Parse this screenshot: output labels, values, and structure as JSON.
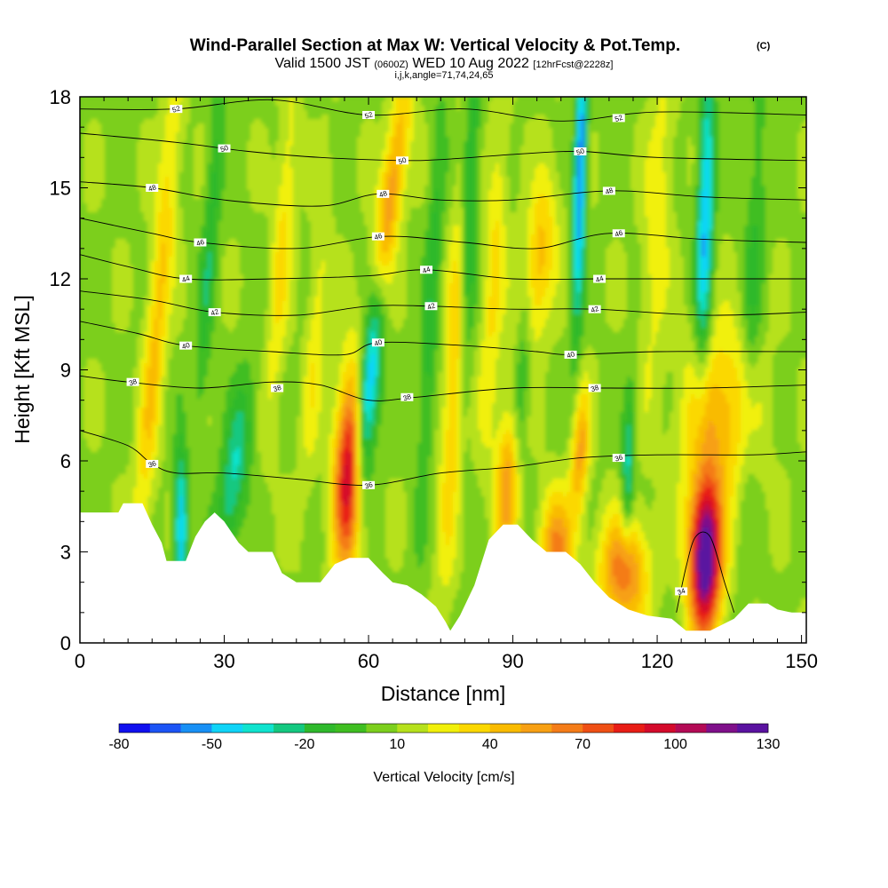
{
  "chart_data": {
    "type": "heatmap",
    "title": "Wind-Parallel Section at Max W: Vertical Velocity & Pot.Temp.",
    "title_mark": "(C)",
    "subtitle": {
      "main_a": "Valid 1500 JST",
      "utc": "(0600Z)",
      "main_b": "WED 10 Aug 2022",
      "run": "[12hrFcst@2228z]"
    },
    "info_line": "i,j,k,angle=71,74,24,65",
    "xlabel": "Distance [nm]",
    "ylabel": "Height [Kft MSL]",
    "xlim": [
      0,
      151
    ],
    "ylim": [
      0,
      18
    ],
    "x_ticks": [
      "0",
      "30",
      "60",
      "90",
      "120",
      "150"
    ],
    "y_ticks": [
      "0",
      "3",
      "6",
      "9",
      "12",
      "15",
      "18"
    ],
    "colorbar": {
      "label": "Vertical Velocity [cm/s]",
      "tick_labels": [
        "-80",
        "-50",
        "-20",
        "10",
        "40",
        "70",
        "100",
        "130"
      ],
      "min": -80,
      "step": 10,
      "colors": [
        "#1010ef",
        "#1c54f5",
        "#1890f5",
        "#10d4f7",
        "#10e3ce",
        "#14c880",
        "#2fb92c",
        "#3fbe21",
        "#7ccf1d",
        "#b6e11c",
        "#f1f00a",
        "#fbd800",
        "#f9bb00",
        "#f7a014",
        "#f47c18",
        "#ef4f15",
        "#e81d16",
        "#d40a2b",
        "#b30a55",
        "#7f108a",
        "#5a12a0"
      ]
    },
    "terrain": [
      [
        0,
        4.3
      ],
      [
        8,
        4.3
      ],
      [
        9,
        4.6
      ],
      [
        13,
        4.6
      ],
      [
        15,
        3.9
      ],
      [
        17,
        3.3
      ],
      [
        18,
        2.7
      ],
      [
        22,
        2.7
      ],
      [
        24,
        3.5
      ],
      [
        26,
        4.0
      ],
      [
        28,
        4.3
      ],
      [
        30,
        4.0
      ],
      [
        33,
        3.3
      ],
      [
        35,
        3.0
      ],
      [
        40,
        3.0
      ],
      [
        42,
        2.3
      ],
      [
        45,
        2.0
      ],
      [
        50,
        2.0
      ],
      [
        53,
        2.6
      ],
      [
        56,
        2.8
      ],
      [
        60,
        2.8
      ],
      [
        63,
        2.3
      ],
      [
        65,
        2.0
      ],
      [
        68,
        1.9
      ],
      [
        71,
        1.6
      ],
      [
        74,
        1.2
      ],
      [
        76,
        0.7
      ],
      [
        77,
        0.4
      ],
      [
        79,
        0.9
      ],
      [
        82,
        1.9
      ],
      [
        85,
        3.4
      ],
      [
        88,
        3.9
      ],
      [
        91,
        3.9
      ],
      [
        94,
        3.4
      ],
      [
        97,
        3.0
      ],
      [
        101,
        3.0
      ],
      [
        104,
        2.6
      ],
      [
        107,
        2.0
      ],
      [
        110,
        1.5
      ],
      [
        114,
        1.1
      ],
      [
        118,
        0.9
      ],
      [
        123,
        0.8
      ],
      [
        126,
        0.4
      ],
      [
        131,
        0.4
      ],
      [
        136,
        0.8
      ],
      [
        139,
        1.3
      ],
      [
        143,
        1.3
      ],
      [
        145,
        1.1
      ],
      [
        148,
        1.0
      ],
      [
        151,
        1.0
      ]
    ],
    "updrafts": [
      {
        "x": 56,
        "y": 5.5,
        "wx": 2.2,
        "wy": 2.3,
        "tilt": 0.15,
        "peak": 95
      },
      {
        "x": 130,
        "y": 2.8,
        "wx": 2.4,
        "wy": 1.8,
        "tilt": 0.05,
        "peak": 130
      },
      {
        "x": 113,
        "y": 2.3,
        "wx": 3.5,
        "wy": 1.3,
        "tilt": 0.0,
        "peak": 60
      },
      {
        "x": 99,
        "y": 2.9,
        "wx": 2.4,
        "wy": 1.4,
        "tilt": 0.0,
        "peak": 55
      },
      {
        "x": 89,
        "y": 5.2,
        "wx": 1.8,
        "wy": 1.8,
        "tilt": 0.2,
        "peak": 50
      },
      {
        "x": 64,
        "y": 14.2,
        "wx": 1.8,
        "wy": 3.2,
        "tilt": 0.9,
        "peak": 55
      },
      {
        "x": 78,
        "y": 9.0,
        "wx": 1.6,
        "wy": 5.0,
        "tilt": 0.3,
        "peak": 35
      },
      {
        "x": 95,
        "y": 12.5,
        "wx": 2.5,
        "wy": 2.0,
        "tilt": 0.6,
        "peak": 40
      },
      {
        "x": 16,
        "y": 10.5,
        "wx": 1.6,
        "wy": 6.0,
        "tilt": 0.5,
        "peak": 35
      },
      {
        "x": 104,
        "y": 6.2,
        "wx": 1.3,
        "wy": 1.5,
        "tilt": 0.3,
        "peak": 45
      },
      {
        "x": 133,
        "y": 7.5,
        "wx": 5.5,
        "wy": 2.0,
        "tilt": 0.2,
        "peak": 40
      },
      {
        "x": 42,
        "y": 13.0,
        "wx": 1.5,
        "wy": 4.0,
        "tilt": 0.4,
        "peak": 25
      },
      {
        "x": 49,
        "y": 10.0,
        "wx": 1.4,
        "wy": 3.5,
        "tilt": 0.4,
        "peak": 20
      },
      {
        "x": 86,
        "y": 12.0,
        "wx": 1.5,
        "wy": 4.0,
        "tilt": 0.3,
        "peak": 25
      },
      {
        "x": 120,
        "y": 14.0,
        "wx": 2.0,
        "wy": 4.0,
        "tilt": 0.3,
        "peak": 20
      }
    ],
    "downdrafts": [
      {
        "x": 60,
        "y": 8.5,
        "wx": 1.6,
        "wy": 2.8,
        "tilt": 0.5,
        "peak": -75
      },
      {
        "x": 130,
        "y": 14.0,
        "wx": 1.2,
        "wy": 3.5,
        "tilt": 0.15,
        "peak": -60
      },
      {
        "x": 104,
        "y": 15.5,
        "wx": 0.9,
        "wy": 3.5,
        "tilt": 0.15,
        "peak": -70
      },
      {
        "x": 21,
        "y": 3.8,
        "wx": 0.9,
        "wy": 1.8,
        "tilt": 0.0,
        "peak": -60
      },
      {
        "x": 32,
        "y": 5.5,
        "wx": 2.0,
        "wy": 2.2,
        "tilt": 0.8,
        "peak": -40
      },
      {
        "x": 81,
        "y": 14.5,
        "wx": 1.2,
        "wy": 4.0,
        "tilt": 0.2,
        "peak": -40
      },
      {
        "x": 114,
        "y": 5.8,
        "wx": 0.9,
        "wy": 1.8,
        "tilt": 0.2,
        "peak": -40
      },
      {
        "x": 27,
        "y": 13.0,
        "wx": 1.2,
        "wy": 4.5,
        "tilt": 0.4,
        "peak": -25
      },
      {
        "x": 73,
        "y": 11.0,
        "wx": 1.2,
        "wy": 5.0,
        "tilt": 0.3,
        "peak": -25
      },
      {
        "x": 92,
        "y": 9.0,
        "wx": 1.2,
        "wy": 3.0,
        "tilt": 0.3,
        "peak": -25
      },
      {
        "x": 140,
        "y": 12.0,
        "wx": 1.5,
        "wy": 5.0,
        "tilt": 0.2,
        "peak": -20
      }
    ],
    "contours": [
      {
        "label": "52",
        "points": [
          [
            0,
            17.6
          ],
          [
            20,
            17.6
          ],
          [
            40,
            17.9
          ],
          [
            60,
            17.4
          ],
          [
            80,
            17.6
          ],
          [
            100,
            17.2
          ],
          [
            120,
            17.5
          ],
          [
            151,
            17.4
          ]
        ],
        "label_at": [
          [
            20,
            17.6
          ],
          [
            60,
            17.4
          ],
          [
            112,
            17.3
          ]
        ]
      },
      {
        "label": "50",
        "points": [
          [
            0,
            16.8
          ],
          [
            20,
            16.5
          ],
          [
            35,
            16.2
          ],
          [
            50,
            16.0
          ],
          [
            70,
            15.9
          ],
          [
            90,
            16.1
          ],
          [
            104,
            16.2
          ],
          [
            120,
            16.0
          ],
          [
            151,
            15.9
          ]
        ],
        "label_at": [
          [
            30,
            16.3
          ],
          [
            67,
            15.9
          ],
          [
            104,
            16.2
          ]
        ]
      },
      {
        "label": "48",
        "points": [
          [
            0,
            15.2
          ],
          [
            15,
            15.0
          ],
          [
            30,
            14.6
          ],
          [
            50,
            14.4
          ],
          [
            62,
            14.8
          ],
          [
            75,
            14.6
          ],
          [
            90,
            14.6
          ],
          [
            110,
            14.9
          ],
          [
            130,
            14.7
          ],
          [
            151,
            14.6
          ]
        ],
        "label_at": [
          [
            15,
            15.0
          ],
          [
            63,
            14.8
          ],
          [
            110,
            14.9
          ]
        ]
      },
      {
        "label": "46",
        "points": [
          [
            0,
            14.0
          ],
          [
            15,
            13.5
          ],
          [
            25,
            13.2
          ],
          [
            45,
            13.0
          ],
          [
            63,
            13.4
          ],
          [
            80,
            13.2
          ],
          [
            95,
            13.0
          ],
          [
            110,
            13.5
          ],
          [
            130,
            13.3
          ],
          [
            151,
            13.2
          ]
        ],
        "label_at": [
          [
            25,
            13.2
          ],
          [
            62,
            13.4
          ],
          [
            112,
            13.5
          ]
        ]
      },
      {
        "label": "44",
        "points": [
          [
            0,
            12.8
          ],
          [
            10,
            12.4
          ],
          [
            22,
            12.0
          ],
          [
            40,
            12.0
          ],
          [
            60,
            12.1
          ],
          [
            72,
            12.3
          ],
          [
            90,
            12.0
          ],
          [
            108,
            12.0
          ],
          [
            130,
            12.0
          ],
          [
            151,
            12.0
          ]
        ],
        "label_at": [
          [
            22,
            12.0
          ],
          [
            72,
            12.3
          ],
          [
            108,
            12.0
          ]
        ]
      },
      {
        "label": "42",
        "points": [
          [
            0,
            11.6
          ],
          [
            15,
            11.3
          ],
          [
            28,
            10.9
          ],
          [
            45,
            10.8
          ],
          [
            60,
            11.1
          ],
          [
            73,
            11.1
          ],
          [
            90,
            11.0
          ],
          [
            107,
            11.0
          ],
          [
            130,
            10.8
          ],
          [
            151,
            10.9
          ]
        ],
        "label_at": [
          [
            28,
            10.9
          ],
          [
            73,
            11.1
          ],
          [
            107,
            11.0
          ]
        ]
      },
      {
        "label": "40",
        "points": [
          [
            0,
            10.6
          ],
          [
            12,
            10.2
          ],
          [
            22,
            9.8
          ],
          [
            40,
            9.6
          ],
          [
            55,
            9.5
          ],
          [
            62,
            9.9
          ],
          [
            80,
            9.8
          ],
          [
            95,
            9.6
          ],
          [
            102,
            9.5
          ],
          [
            120,
            9.6
          ],
          [
            151,
            9.6
          ]
        ],
        "label_at": [
          [
            22,
            9.8
          ],
          [
            62,
            9.9
          ],
          [
            102,
            9.5
          ]
        ]
      },
      {
        "label": "38",
        "points": [
          [
            0,
            8.8
          ],
          [
            10,
            8.6
          ],
          [
            25,
            8.4
          ],
          [
            40,
            8.6
          ],
          [
            50,
            8.5
          ],
          [
            60,
            8.0
          ],
          [
            70,
            8.1
          ],
          [
            90,
            8.4
          ],
          [
            110,
            8.4
          ],
          [
            130,
            8.4
          ],
          [
            151,
            8.5
          ]
        ],
        "label_at": [
          [
            11,
            8.6
          ],
          [
            41,
            8.4
          ],
          [
            68,
            8.1
          ],
          [
            107,
            8.4
          ]
        ]
      },
      {
        "label": "36",
        "points": [
          [
            0,
            7.0
          ],
          [
            10,
            6.5
          ],
          [
            15,
            5.9
          ],
          [
            20,
            5.6
          ],
          [
            30,
            5.6
          ],
          [
            45,
            5.4
          ],
          [
            60,
            5.2
          ],
          [
            75,
            5.6
          ],
          [
            90,
            5.8
          ],
          [
            104,
            6.1
          ],
          [
            120,
            6.2
          ],
          [
            140,
            6.2
          ],
          [
            151,
            6.3
          ]
        ],
        "label_at": [
          [
            15,
            5.9
          ],
          [
            60,
            5.2
          ],
          [
            112,
            6.1
          ]
        ]
      },
      {
        "label": "34",
        "points": [
          [
            124,
            1.0
          ],
          [
            126,
            2.5
          ],
          [
            128,
            3.5
          ],
          [
            131,
            3.5
          ],
          [
            134,
            2.0
          ],
          [
            136,
            1.0
          ]
        ],
        "label_at": [
          [
            125,
            1.7
          ]
        ]
      }
    ]
  }
}
